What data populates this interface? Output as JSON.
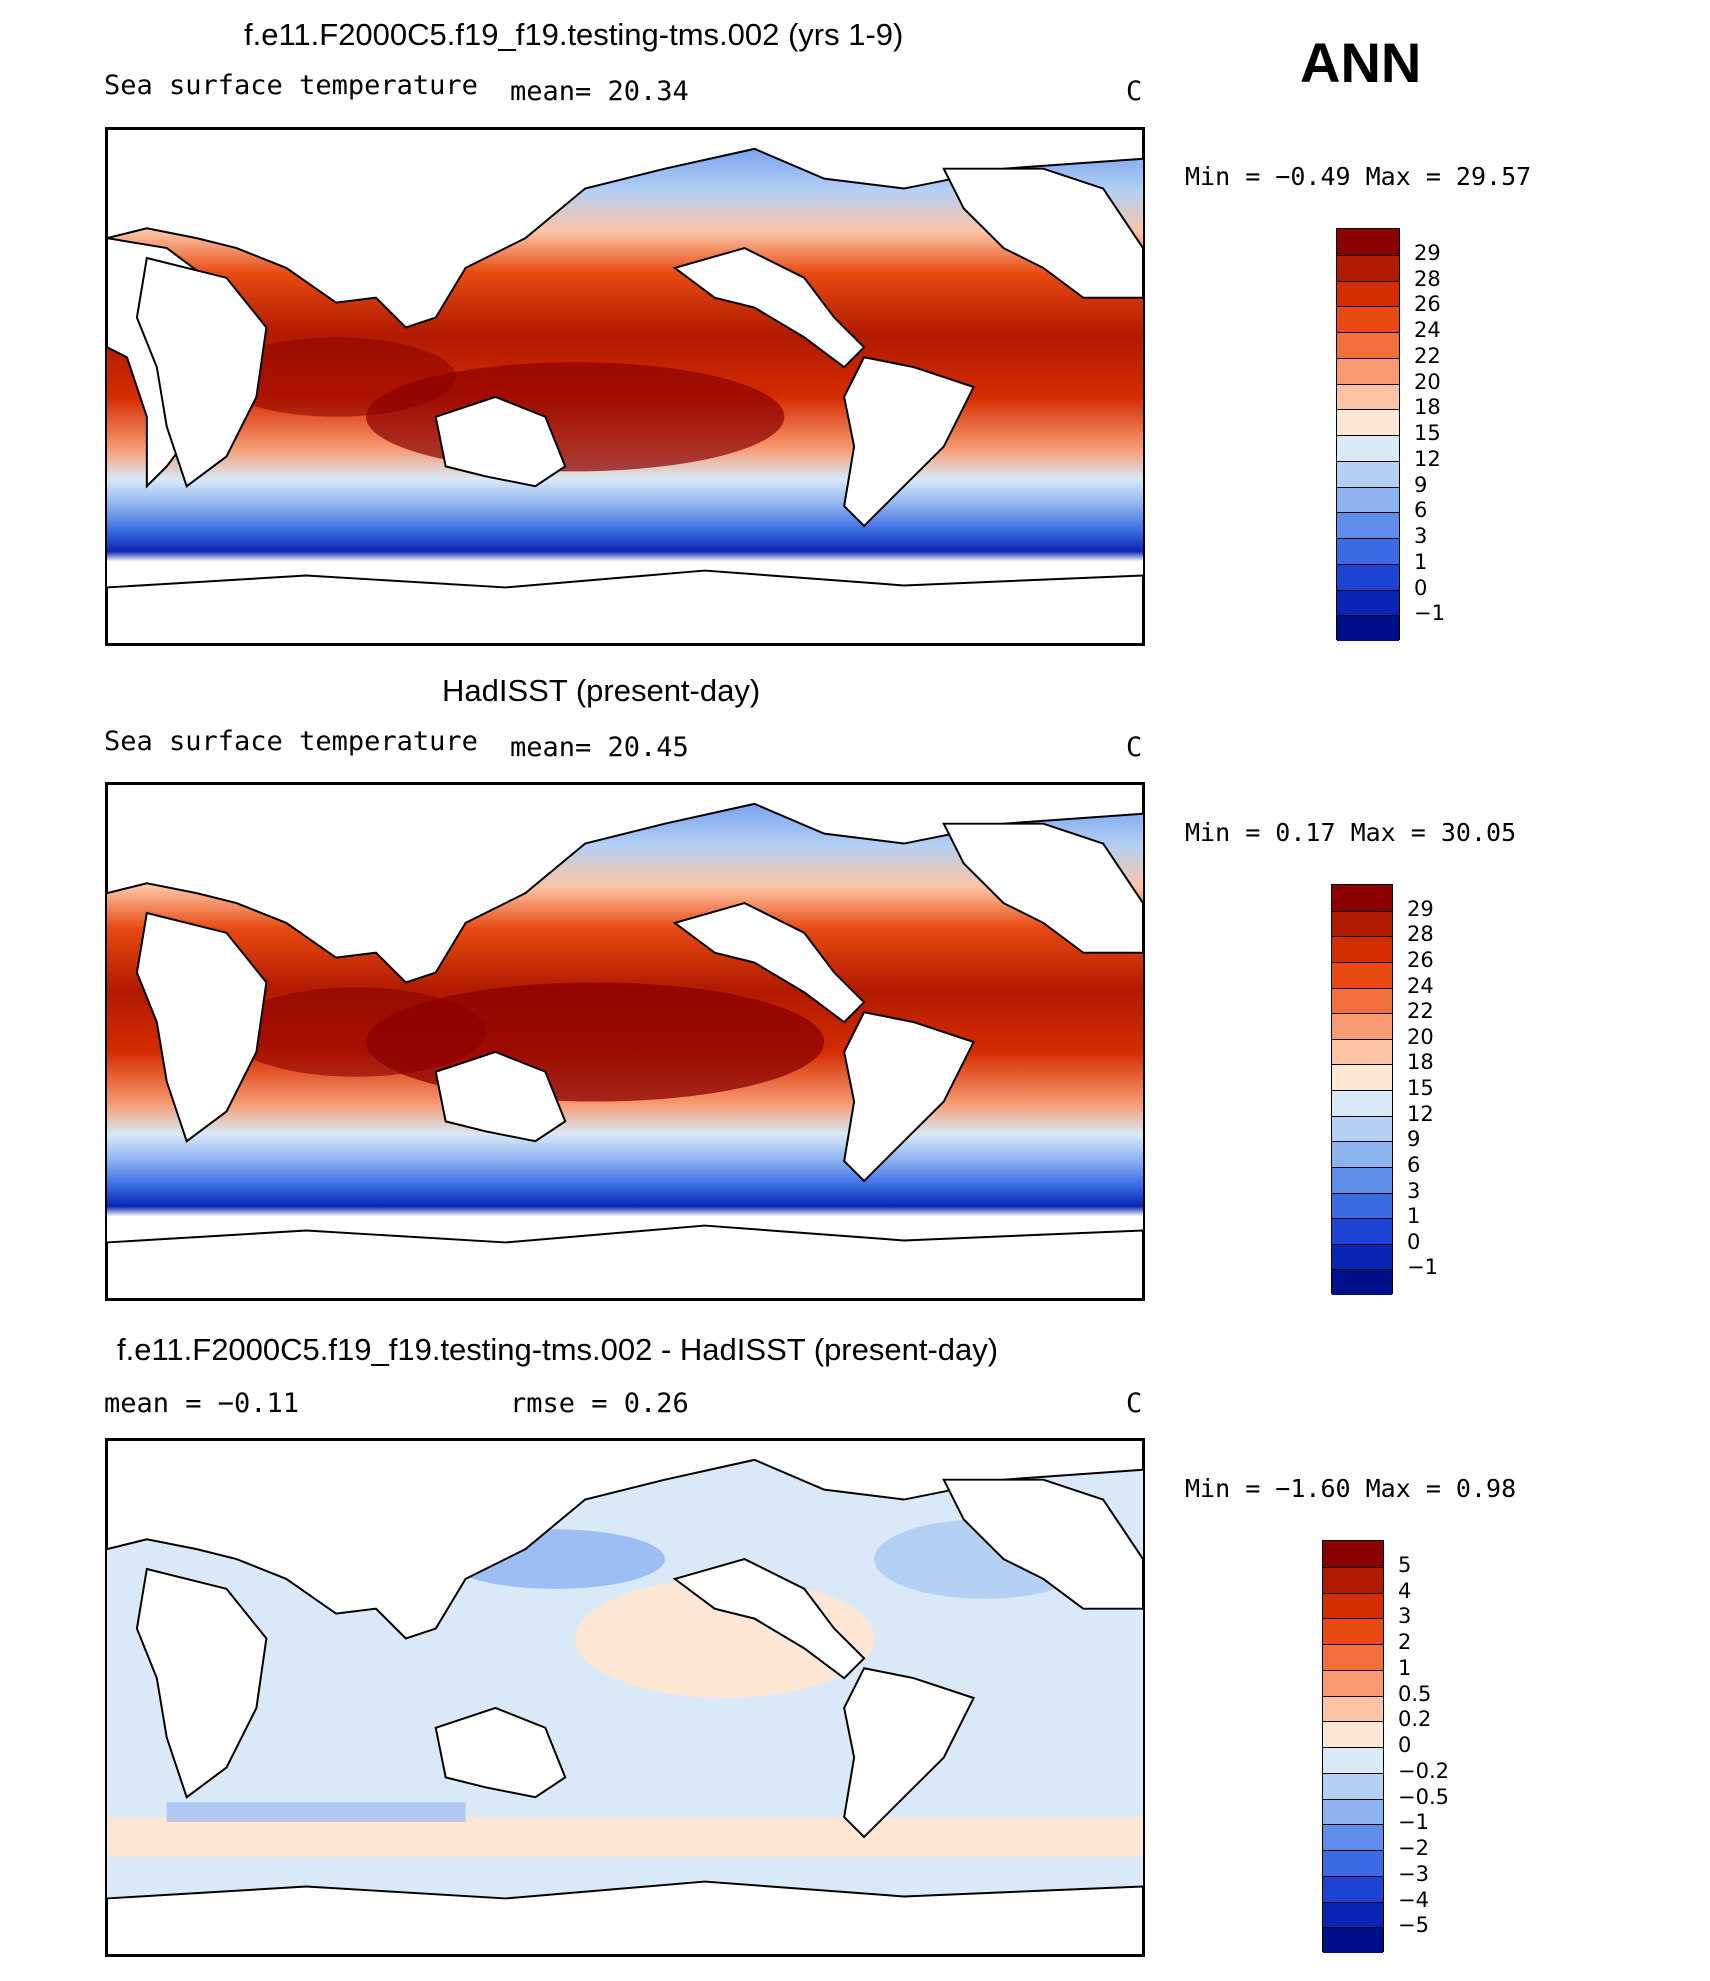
{
  "annotation": "ANN",
  "panels": [
    {
      "title": "f.e11.F2000C5.f19_f19.testing-tms.002 (yrs 1-9)",
      "left_text": "Sea surface temperature",
      "stat_text": "mean=  20.34",
      "units": "C",
      "minmax": "Min =   −0.49 Max =   29.57",
      "map_kind": "model-sst"
    },
    {
      "title": "HadISST (present-day)",
      "left_text": "Sea surface temperature",
      "stat_text": "mean=  20.45",
      "units": "C",
      "minmax": "Min =    0.17 Max =   30.05",
      "map_kind": "obs-sst"
    },
    {
      "title": "f.e11.F2000C5.f19_f19.testing-tms.002 - HadISST (present-day)",
      "left_text": "mean =   −0.11",
      "stat_text": "rmse =    0.26",
      "units": "C",
      "minmax": "Min =   −1.60 Max =    0.98",
      "map_kind": "difference"
    }
  ],
  "colorbars": [
    {
      "labels": [
        "29",
        "28",
        "26",
        "24",
        "22",
        "20",
        "18",
        "15",
        "12",
        "9",
        "6",
        "3",
        "1",
        "0",
        "−1"
      ],
      "colors": [
        "#8b0000",
        "#b01a00",
        "#d52c00",
        "#e84a12",
        "#f26f3d",
        "#f79a70",
        "#fcc4a4",
        "#fde6d4",
        "#d9e9f8",
        "#b4d0f5",
        "#8db3f0",
        "#5f8eea",
        "#3a6ae4",
        "#1b44d4",
        "#0a25b4",
        "#00108a"
      ]
    },
    {
      "labels": [
        "29",
        "28",
        "26",
        "24",
        "22",
        "20",
        "18",
        "15",
        "12",
        "9",
        "6",
        "3",
        "1",
        "0",
        "−1"
      ],
      "colors": [
        "#8b0000",
        "#b01a00",
        "#d52c00",
        "#e84a12",
        "#f26f3d",
        "#f79a70",
        "#fcc4a4",
        "#fde6d4",
        "#d9e9f8",
        "#b4d0f5",
        "#8db3f0",
        "#5f8eea",
        "#3a6ae4",
        "#1b44d4",
        "#0a25b4",
        "#00108a"
      ]
    },
    {
      "labels": [
        "5",
        "4",
        "3",
        "2",
        "1",
        "0.5",
        "0.2",
        "0",
        "−0.2",
        "−0.5",
        "−1",
        "−2",
        "−3",
        "−4",
        "−5"
      ],
      "colors": [
        "#8b0000",
        "#b01a00",
        "#d52c00",
        "#e84a12",
        "#f26f3d",
        "#f79a70",
        "#fcc4a4",
        "#fde6d4",
        "#d9e9f8",
        "#b4d0f5",
        "#8db3f0",
        "#5f8eea",
        "#3a6ae4",
        "#1b44d4",
        "#0a25b4",
        "#00108a"
      ]
    }
  ]
}
